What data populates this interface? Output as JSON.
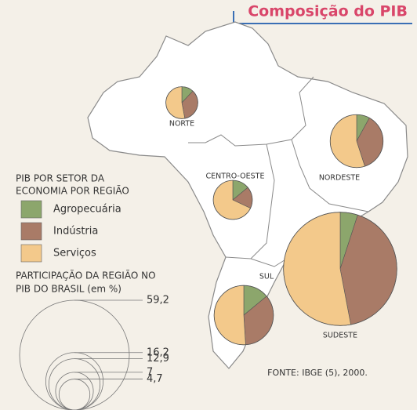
{
  "title": "Composição do PIB",
  "chart_data": {
    "type": "pie-map",
    "sectors": [
      {
        "name": "Agropecuária",
        "color": "#8ca66c"
      },
      {
        "name": "Indústria",
        "color": "#a97b67"
      },
      {
        "name": "Serviços",
        "color": "#f3c98b"
      }
    ],
    "regions": [
      {
        "name": "NORTE",
        "share": 4.7,
        "values": [
          12,
          35,
          53
        ]
      },
      {
        "name": "NORDESTE",
        "share": 12.9,
        "values": [
          8,
          37,
          55
        ]
      },
      {
        "name": "CENTRO-OESTE",
        "share": 7,
        "values": [
          14,
          18,
          68
        ]
      },
      {
        "name": "SUDESTE",
        "share": 59.2,
        "values": [
          5,
          42,
          53
        ]
      },
      {
        "name": "SUL",
        "share": 16.2,
        "values": [
          14,
          35,
          51
        ]
      }
    ],
    "legend_title": [
      "PIB POR SETOR DA",
      "ECONOMIA POR REGIÃO"
    ],
    "size_legend_title": [
      "PARTICIPAÇÃO DA REGIÃO NO",
      "PIB DO BRASIL (em %)"
    ],
    "size_legend": [
      {
        "value": 59.2,
        "label": "59,2"
      },
      {
        "value": 16.2,
        "label": "16,2"
      },
      {
        "value": 12.9,
        "label": "12,9"
      },
      7,
      {
        "value": 4.7,
        "label": "4,7"
      }
    ],
    "source": "FONTE: IBGE (5), 2000."
  }
}
